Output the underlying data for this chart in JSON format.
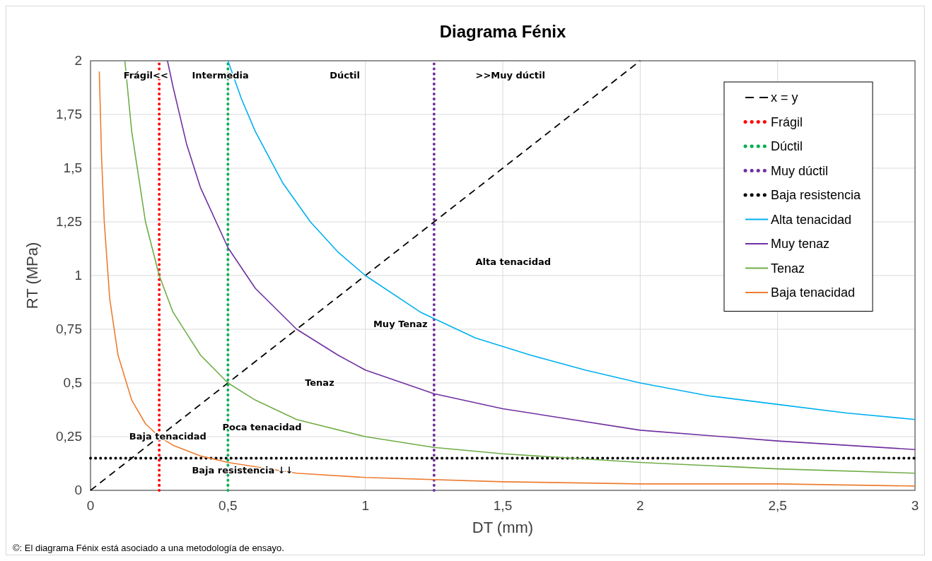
{
  "chart_data": {
    "type": "line",
    "title": "Diagrama Fénix",
    "xlabel": "DT (mm)",
    "ylabel": "RT (MPa)",
    "xlim": [
      0,
      3
    ],
    "xticks": [
      0,
      {
        "value": 0.5,
        "label": "0,5"
      },
      1,
      {
        "value": 1.5,
        "label": "1,5"
      },
      2,
      {
        "value": 2.5,
        "label": "2,5"
      },
      3
    ],
    "ylim": [
      0,
      2
    ],
    "yticks": [
      0,
      {
        "value": 0.25,
        "label": "0,25"
      },
      {
        "value": 0.5,
        "label": "0,5"
      },
      {
        "value": 0.75,
        "label": "0,75"
      },
      1,
      {
        "value": 1.25,
        "label": "1,25"
      },
      {
        "value": 1.5,
        "label": "1,5"
      },
      {
        "value": 1.75,
        "label": "1,75"
      },
      2
    ],
    "grid": true,
    "legend": "top right",
    "marker": "none",
    "series": [
      {
        "name": "x = y",
        "color": "#000000",
        "line_style": "dashed",
        "x": [
          0,
          2
        ],
        "values": [
          0,
          2
        ]
      },
      {
        "name": "Frágil",
        "color": "#ff0000",
        "line_style": "dotted",
        "x": [
          0.25,
          0.25
        ],
        "values": [
          0,
          2
        ]
      },
      {
        "name": "Dúctil",
        "color": "#00b050",
        "line_style": "dotted",
        "x": [
          0.5,
          0.5
        ],
        "values": [
          0,
          2
        ]
      },
      {
        "name": "Muy dúctil",
        "color": "#7030a0",
        "line_style": "dotted",
        "x": [
          1.25,
          1.25
        ],
        "values": [
          0,
          2
        ]
      },
      {
        "name": "Baja resistencia",
        "color": "#000000",
        "line_style": "dotted",
        "x": [
          0,
          3
        ],
        "values": [
          0.15,
          0.15
        ]
      },
      {
        "name": "Alta tenacidad",
        "color": "#00b0f0",
        "line_style": "solid",
        "x": [
          0.5,
          0.55,
          0.6,
          0.7,
          0.8,
          0.9,
          1,
          1.2,
          1.4,
          1.6,
          1.8,
          2,
          2.25,
          2.5,
          2.75,
          3
        ],
        "values": [
          2,
          1.82,
          1.67,
          1.43,
          1.25,
          1.11,
          1,
          0.83,
          0.71,
          0.63,
          0.56,
          0.5,
          0.44,
          0.4,
          0.36,
          0.33
        ]
      },
      {
        "name": "Muy tenaz",
        "color": "#7030a0",
        "line_style": "solid",
        "x": [
          0.28,
          0.3,
          0.35,
          0.4,
          0.5,
          0.6,
          0.75,
          0.9,
          1,
          1.25,
          1.5,
          2,
          2.5,
          3
        ],
        "values": [
          2,
          1.88,
          1.61,
          1.41,
          1.13,
          0.94,
          0.75,
          0.63,
          0.56,
          0.45,
          0.38,
          0.28,
          0.23,
          0.19
        ]
      },
      {
        "name": "Tenaz",
        "color": "#70ad47",
        "line_style": "solid",
        "x": [
          0.125,
          0.15,
          0.2,
          0.25,
          0.3,
          0.4,
          0.5,
          0.6,
          0.75,
          1,
          1.25,
          1.5,
          2,
          2.5,
          3
        ],
        "values": [
          2,
          1.67,
          1.25,
          1,
          0.83,
          0.63,
          0.5,
          0.42,
          0.33,
          0.25,
          0.2,
          0.17,
          0.13,
          0.1,
          0.08
        ]
      },
      {
        "name": "Baja tenacidad",
        "color": "#ed7d31",
        "line_style": "solid",
        "x": [
          0.032,
          0.04,
          0.05,
          0.07,
          0.1,
          0.15,
          0.2,
          0.25,
          0.3,
          0.4,
          0.5,
          0.75,
          1,
          1.5,
          2,
          2.5,
          3
        ],
        "values": [
          1.95,
          1.56,
          1.25,
          0.89,
          0.63,
          0.42,
          0.31,
          0.25,
          0.21,
          0.16,
          0.13,
          0.08,
          0.06,
          0.04,
          0.03,
          0.03,
          0.02
        ]
      }
    ],
    "annotations": [
      "Frágil<<",
      "Intermedia",
      "Dúctil",
      ">>Muy dúctil",
      "Alta tenacidad",
      "Muy Tenaz",
      "Tenaz",
      "Poca tenacidad",
      "Baja tenacidad",
      "Baja resistencia ↓↓",
      "©: El diagrama Fénix está asociado a una metodología de ensayo."
    ]
  }
}
